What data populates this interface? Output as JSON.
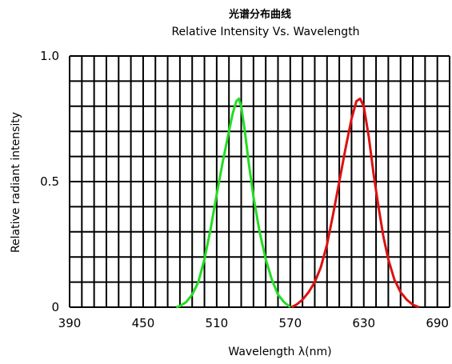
{
  "chart_data": {
    "type": "line",
    "title": "光谱分布曲线",
    "subtitle": "Relative Intensity Vs. Wavelength",
    "xlabel": "Wavelength λ(nm)",
    "ylabel": "Relative radiant intensity",
    "xlim": [
      390,
      700
    ],
    "ylim": [
      0,
      1.0
    ],
    "x_ticks": [
      390,
      450,
      510,
      570,
      630,
      690
    ],
    "x_tick_labels": [
      "390",
      "450",
      "510",
      "570",
      "630",
      "690"
    ],
    "y_ticks": [
      0,
      0.5,
      1.0
    ],
    "y_tick_labels": [
      "0",
      "0.5",
      "1.0"
    ],
    "grid": true,
    "series": [
      {
        "color": "#22dd22",
        "points": [
          [
            477,
            0
          ],
          [
            480,
            0.005
          ],
          [
            485,
            0.02
          ],
          [
            490,
            0.05
          ],
          [
            495,
            0.1
          ],
          [
            500,
            0.19
          ],
          [
            505,
            0.31
          ],
          [
            510,
            0.45
          ],
          [
            515,
            0.58
          ],
          [
            520,
            0.7
          ],
          [
            523,
            0.77
          ],
          [
            526,
            0.82
          ],
          [
            528,
            0.83
          ],
          [
            530,
            0.8
          ],
          [
            533,
            0.7
          ],
          [
            536,
            0.58
          ],
          [
            540,
            0.44
          ],
          [
            545,
            0.3
          ],
          [
            550,
            0.19
          ],
          [
            555,
            0.11
          ],
          [
            560,
            0.05
          ],
          [
            565,
            0.02
          ],
          [
            570,
            0
          ]
        ]
      },
      {
        "color": "#dd1111",
        "points": [
          [
            571,
            0
          ],
          [
            575,
            0.01
          ],
          [
            580,
            0.03
          ],
          [
            585,
            0.06
          ],
          [
            590,
            0.1
          ],
          [
            595,
            0.16
          ],
          [
            600,
            0.25
          ],
          [
            605,
            0.37
          ],
          [
            610,
            0.5
          ],
          [
            615,
            0.63
          ],
          [
            620,
            0.75
          ],
          [
            624,
            0.82
          ],
          [
            627,
            0.83
          ],
          [
            630,
            0.8
          ],
          [
            634,
            0.68
          ],
          [
            638,
            0.53
          ],
          [
            642,
            0.4
          ],
          [
            646,
            0.28
          ],
          [
            650,
            0.19
          ],
          [
            655,
            0.11
          ],
          [
            660,
            0.06
          ],
          [
            665,
            0.03
          ],
          [
            670,
            0.01
          ],
          [
            675,
            0
          ]
        ]
      }
    ]
  }
}
